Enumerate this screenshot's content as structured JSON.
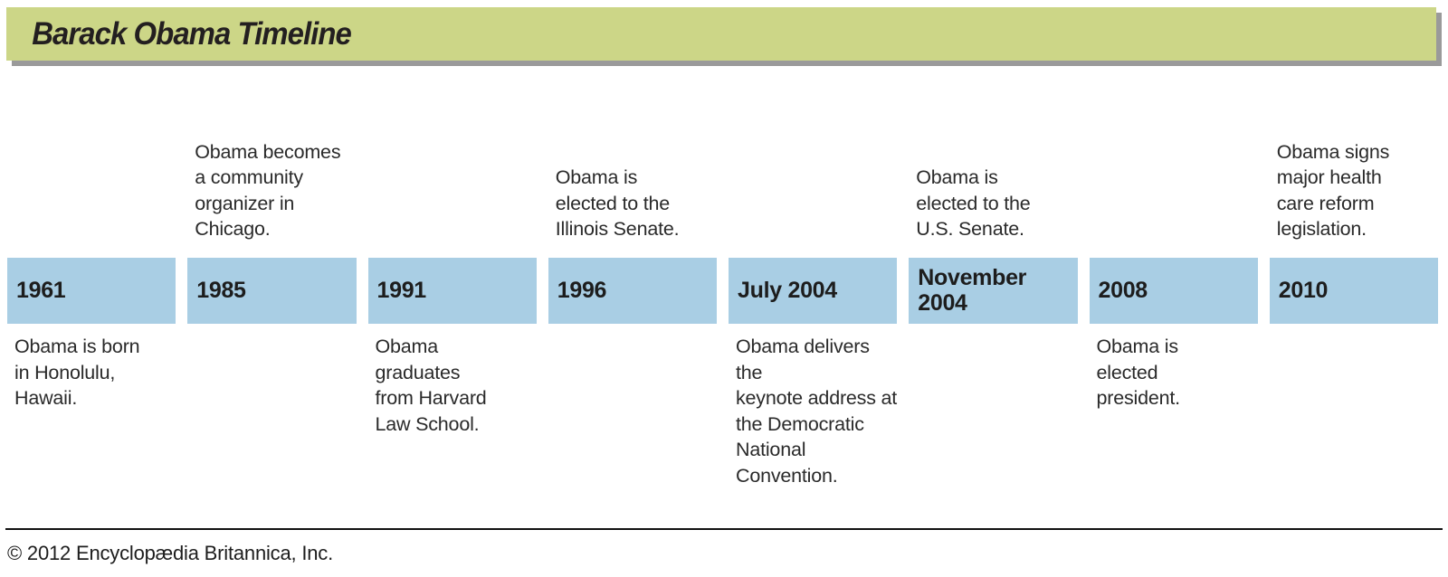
{
  "header": {
    "title": "Barack Obama Timeline"
  },
  "chart_data": {
    "type": "table",
    "title": "Barack Obama Timeline",
    "layout": "horizontal-timeline",
    "events": [
      {
        "date": "1961",
        "label_position": "below",
        "description": "Obama is born\nin Honolulu,\nHawaii."
      },
      {
        "date": "1985",
        "label_position": "above",
        "description": "Obama becomes\na community\norganizer in\nChicago."
      },
      {
        "date": "1991",
        "label_position": "below",
        "description": "Obama\ngraduates\nfrom Harvard\nLaw School."
      },
      {
        "date": "1996",
        "label_position": "above",
        "description": "Obama is\nelected to the\nIllinois Senate."
      },
      {
        "date": "July 2004",
        "label_position": "below",
        "description": "Obama delivers the\nkeynote address at\nthe Democratic\nNational\nConvention."
      },
      {
        "date": "November 2004",
        "label_position": "above",
        "description": "Obama is\nelected to the\nU.S. Senate."
      },
      {
        "date": "2008",
        "label_position": "below",
        "description": "Obama is\nelected\npresident."
      },
      {
        "date": "2010",
        "label_position": "above",
        "description": "Obama signs\nmajor health\ncare reform\nlegislation."
      }
    ]
  },
  "footer": {
    "copyright": "© 2012 Encyclopædia Britannica, Inc."
  },
  "colors": {
    "header_bg": "#ccd687",
    "header_shadow": "#9a9a9a",
    "box_bg": "#a9cee4",
    "text": "#2a2a2a"
  }
}
